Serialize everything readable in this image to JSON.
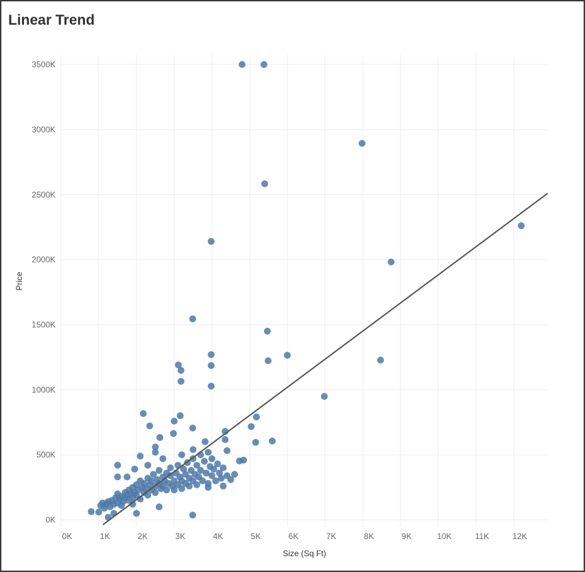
{
  "chart_data": {
    "type": "scatter",
    "title": "Linear Trend",
    "xlabel": "Size (Sq Ft)",
    "ylabel": "Price",
    "x_unit": "thousand sq ft",
    "y_unit": "thousand",
    "xlim": [
      0,
      12.9
    ],
    "ylim": [
      -40,
      3550
    ],
    "grid": true,
    "x_ticks": [
      0,
      1,
      2,
      3,
      4,
      5,
      6,
      7,
      8,
      9,
      10,
      11,
      12
    ],
    "x_tick_labels": [
      "0K",
      "1K",
      "2K",
      "3K",
      "4K",
      "5K",
      "6K",
      "7K",
      "8K",
      "9K",
      "10K",
      "11K",
      "12K"
    ],
    "y_ticks": [
      0,
      500,
      1000,
      1500,
      2000,
      2500,
      3000,
      3500
    ],
    "y_tick_labels": [
      "0K",
      "500K",
      "1000K",
      "1500K",
      "2000K",
      "2500K",
      "3000K",
      "3500K"
    ],
    "point_color": "#4e79a7",
    "trend_color": "#555555",
    "trend_line": {
      "type": "linear",
      "slope": 216,
      "intercept": -277
    },
    "points": [
      [
        4.8,
        3500
      ],
      [
        5.38,
        3500
      ],
      [
        7.98,
        2894
      ],
      [
        5.4,
        2583
      ],
      [
        12.2,
        2261
      ],
      [
        8.75,
        1982
      ],
      [
        3.98,
        2140
      ],
      [
        3.49,
        1545
      ],
      [
        5.47,
        1450
      ],
      [
        3.98,
        1270
      ],
      [
        5.49,
        1223
      ],
      [
        6.0,
        1265
      ],
      [
        8.47,
        1228
      ],
      [
        3.11,
        1191
      ],
      [
        3.18,
        1149
      ],
      [
        3.98,
        1186
      ],
      [
        3.18,
        1065
      ],
      [
        3.98,
        1028
      ],
      [
        6.98,
        949
      ],
      [
        2.18,
        817
      ],
      [
        3.16,
        801
      ],
      [
        2.35,
        722
      ],
      [
        3.0,
        759
      ],
      [
        3.49,
        706
      ],
      [
        2.62,
        633
      ],
      [
        2.98,
        664
      ],
      [
        4.35,
        680
      ],
      [
        5.18,
        791
      ],
      [
        5.04,
        717
      ],
      [
        5.6,
        606
      ],
      [
        5.16,
        596
      ],
      [
        3.82,
        601
      ],
      [
        4.35,
        617
      ],
      [
        4.4,
        532
      ],
      [
        4.84,
        459
      ],
      [
        4.73,
        453
      ],
      [
        0.8,
        63
      ],
      [
        3.49,
        37
      ],
      [
        1.0,
        60
      ],
      [
        1.05,
        110
      ],
      [
        1.1,
        130
      ],
      [
        1.15,
        90
      ],
      [
        1.2,
        120
      ],
      [
        1.25,
        140
      ],
      [
        1.3,
        100
      ],
      [
        1.35,
        150
      ],
      [
        1.4,
        120
      ],
      [
        1.45,
        170
      ],
      [
        1.5,
        130
      ],
      [
        1.5,
        200
      ],
      [
        1.55,
        160
      ],
      [
        1.6,
        180
      ],
      [
        1.6,
        110
      ],
      [
        1.65,
        140
      ],
      [
        1.7,
        210
      ],
      [
        1.7,
        170
      ],
      [
        1.75,
        190
      ],
      [
        1.8,
        150
      ],
      [
        1.8,
        230
      ],
      [
        1.85,
        200
      ],
      [
        1.9,
        170
      ],
      [
        1.9,
        250
      ],
      [
        1.95,
        210
      ],
      [
        2.0,
        190
      ],
      [
        2.0,
        270
      ],
      [
        2.05,
        230
      ],
      [
        2.1,
        160
      ],
      [
        2.1,
        300
      ],
      [
        2.15,
        250
      ],
      [
        2.2,
        210
      ],
      [
        2.2,
        280
      ],
      [
        2.25,
        240
      ],
      [
        2.3,
        320
      ],
      [
        2.3,
        190
      ],
      [
        2.35,
        270
      ],
      [
        2.4,
        230
      ],
      [
        2.4,
        300
      ],
      [
        2.45,
        350
      ],
      [
        2.5,
        260
      ],
      [
        2.5,
        210
      ],
      [
        2.55,
        310
      ],
      [
        2.6,
        280
      ],
      [
        2.6,
        380
      ],
      [
        2.65,
        240
      ],
      [
        2.7,
        330
      ],
      [
        2.7,
        260
      ],
      [
        2.75,
        300
      ],
      [
        2.8,
        360
      ],
      [
        2.8,
        230
      ],
      [
        2.85,
        280
      ],
      [
        2.9,
        340
      ],
      [
        2.9,
        400
      ],
      [
        2.95,
        260
      ],
      [
        3.0,
        300
      ],
      [
        3.0,
        230
      ],
      [
        3.05,
        360
      ],
      [
        3.1,
        420
      ],
      [
        3.1,
        270
      ],
      [
        3.15,
        330
      ],
      [
        3.2,
        300
      ],
      [
        3.2,
        240
      ],
      [
        3.25,
        390
      ],
      [
        3.3,
        350
      ],
      [
        3.3,
        280
      ],
      [
        3.35,
        440
      ],
      [
        3.4,
        320
      ],
      [
        3.4,
        260
      ],
      [
        3.45,
        380
      ],
      [
        3.5,
        300
      ],
      [
        3.5,
        470
      ],
      [
        3.55,
        350
      ],
      [
        3.6,
        420
      ],
      [
        3.6,
        270
      ],
      [
        3.65,
        330
      ],
      [
        3.7,
        500
      ],
      [
        3.7,
        380
      ],
      [
        3.75,
        300
      ],
      [
        3.8,
        450
      ],
      [
        3.85,
        360
      ],
      [
        3.9,
        520
      ],
      [
        3.9,
        280
      ],
      [
        3.95,
        410
      ],
      [
        4.0,
        340
      ],
      [
        4.0,
        470
      ],
      [
        4.05,
        390
      ],
      [
        4.1,
        300
      ],
      [
        4.15,
        430
      ],
      [
        4.2,
        360
      ],
      [
        4.25,
        320
      ],
      [
        4.3,
        400
      ],
      [
        4.4,
        340
      ],
      [
        4.5,
        310
      ],
      [
        4.6,
        350
      ],
      [
        1.5,
        420
      ],
      [
        1.5,
        330
      ],
      [
        1.75,
        330
      ],
      [
        1.95,
        390
      ],
      [
        2.3,
        420
      ],
      [
        2.5,
        560
      ],
      [
        2.5,
        520
      ],
      [
        2.7,
        470
      ],
      [
        3.2,
        500
      ],
      [
        3.5,
        540
      ],
      [
        2.1,
        490
      ],
      [
        1.4,
        50
      ],
      [
        1.25,
        20
      ],
      [
        2.0,
        50
      ],
      [
        2.6,
        100
      ],
      [
        1.9,
        120
      ],
      [
        4.3,
        260
      ],
      [
        3.9,
        250
      ]
    ]
  }
}
